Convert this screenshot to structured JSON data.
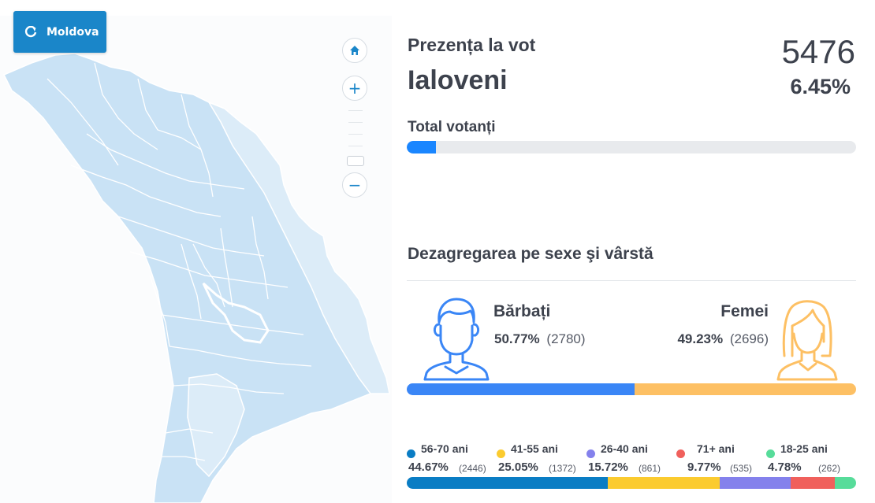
{
  "map": {
    "region_button_label": "Moldova",
    "colors": {
      "region_fill": "#c9e2f5",
      "region_light": "#dcecf8",
      "border": "#ffffff"
    }
  },
  "turnout": {
    "title": "Prezența la vot",
    "district": "Ialoveni",
    "voters_count": "5476",
    "voters_pct": "6.45%",
    "total_label": "Total votanți",
    "total_fraction": 0.0645
  },
  "breakdown": {
    "title": "Dezagregarea pe sexe şi vârstă",
    "male": {
      "label": "Bărbați",
      "pct": "50.77%",
      "count": "(2780)",
      "share": 50.77,
      "color": "#3a86f6"
    },
    "female": {
      "label": "Femei",
      "pct": "49.23%",
      "count": "(2696)",
      "share": 49.23,
      "color": "#fdc064"
    },
    "age_groups": [
      {
        "label": "56-70 ani",
        "pct": "44.67%",
        "count": "(2446)",
        "share": 44.67,
        "color": "#0a7dc4"
      },
      {
        "label": "41-55 ani",
        "pct": "25.05%",
        "count": "(1372)",
        "share": 25.05,
        "color": "#fbcb2f"
      },
      {
        "label": "26-40 ani",
        "pct": "15.72%",
        "count": "(861)",
        "share": 15.72,
        "color": "#8481ec"
      },
      {
        "label": "71+ ani",
        "pct": "9.77%",
        "count": "(535)",
        "share": 9.77,
        "color": "#f0605c"
      },
      {
        "label": "18-25 ani",
        "pct": "4.78%",
        "count": "(262)",
        "share": 4.78,
        "color": "#57dc9a"
      }
    ]
  }
}
